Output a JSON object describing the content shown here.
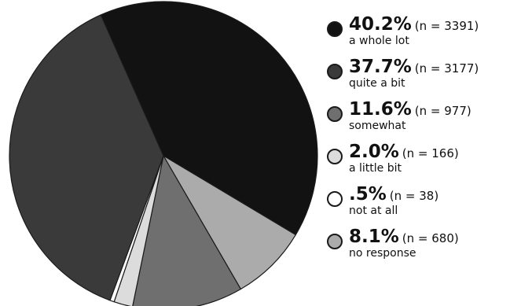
{
  "chart_data": {
    "type": "pie",
    "start_angle_deg": -24,
    "direction": "clockwise",
    "legend_position": "right",
    "slices": [
      {
        "percent_label": "40.2%",
        "count_label": "(n = 3391)",
        "label": "a whole lot",
        "value": 3391,
        "color": "#121212"
      },
      {
        "percent_label": "8.1%",
        "count_label": "(n = 680)",
        "label": "no response",
        "value": 680,
        "color": "#ababab"
      },
      {
        "percent_label": "11.6%",
        "count_label": "(n = 977)",
        "label": "somewhat",
        "value": 977,
        "color": "#6f6f6f"
      },
      {
        "percent_label": "2.0%",
        "count_label": "(n = 166)",
        "label": "a little bit",
        "value": 166,
        "color": "#dcdcdc"
      },
      {
        "percent_label": ".5%",
        "count_label": "(n = 38)",
        "label": "not at all",
        "value": 38,
        "color": "#ffffff"
      },
      {
        "percent_label": "37.7%",
        "count_label": "(n = 3177)",
        "label": "quite a bit",
        "value": 3177,
        "color": "#3a3a3a"
      }
    ],
    "legend": [
      {
        "percent_label": "40.2%",
        "count_label": "(n = 3391)",
        "label": "a whole lot",
        "color": "#121212"
      },
      {
        "percent_label": "37.7%",
        "count_label": "(n = 3177)",
        "label": "quite a bit",
        "color": "#3a3a3a"
      },
      {
        "percent_label": "11.6%",
        "count_label": "(n = 977)",
        "label": "somewhat",
        "color": "#6f6f6f"
      },
      {
        "percent_label": "2.0%",
        "count_label": "(n = 166)",
        "label": "a little bit",
        "color": "#dcdcdc"
      },
      {
        "percent_label": ".5%",
        "count_label": "(n = 38)",
        "label": "not at all",
        "color": "#ffffff"
      },
      {
        "percent_label": "8.1%",
        "count_label": "(n = 680)",
        "label": "no response",
        "color": "#ababab"
      }
    ]
  }
}
